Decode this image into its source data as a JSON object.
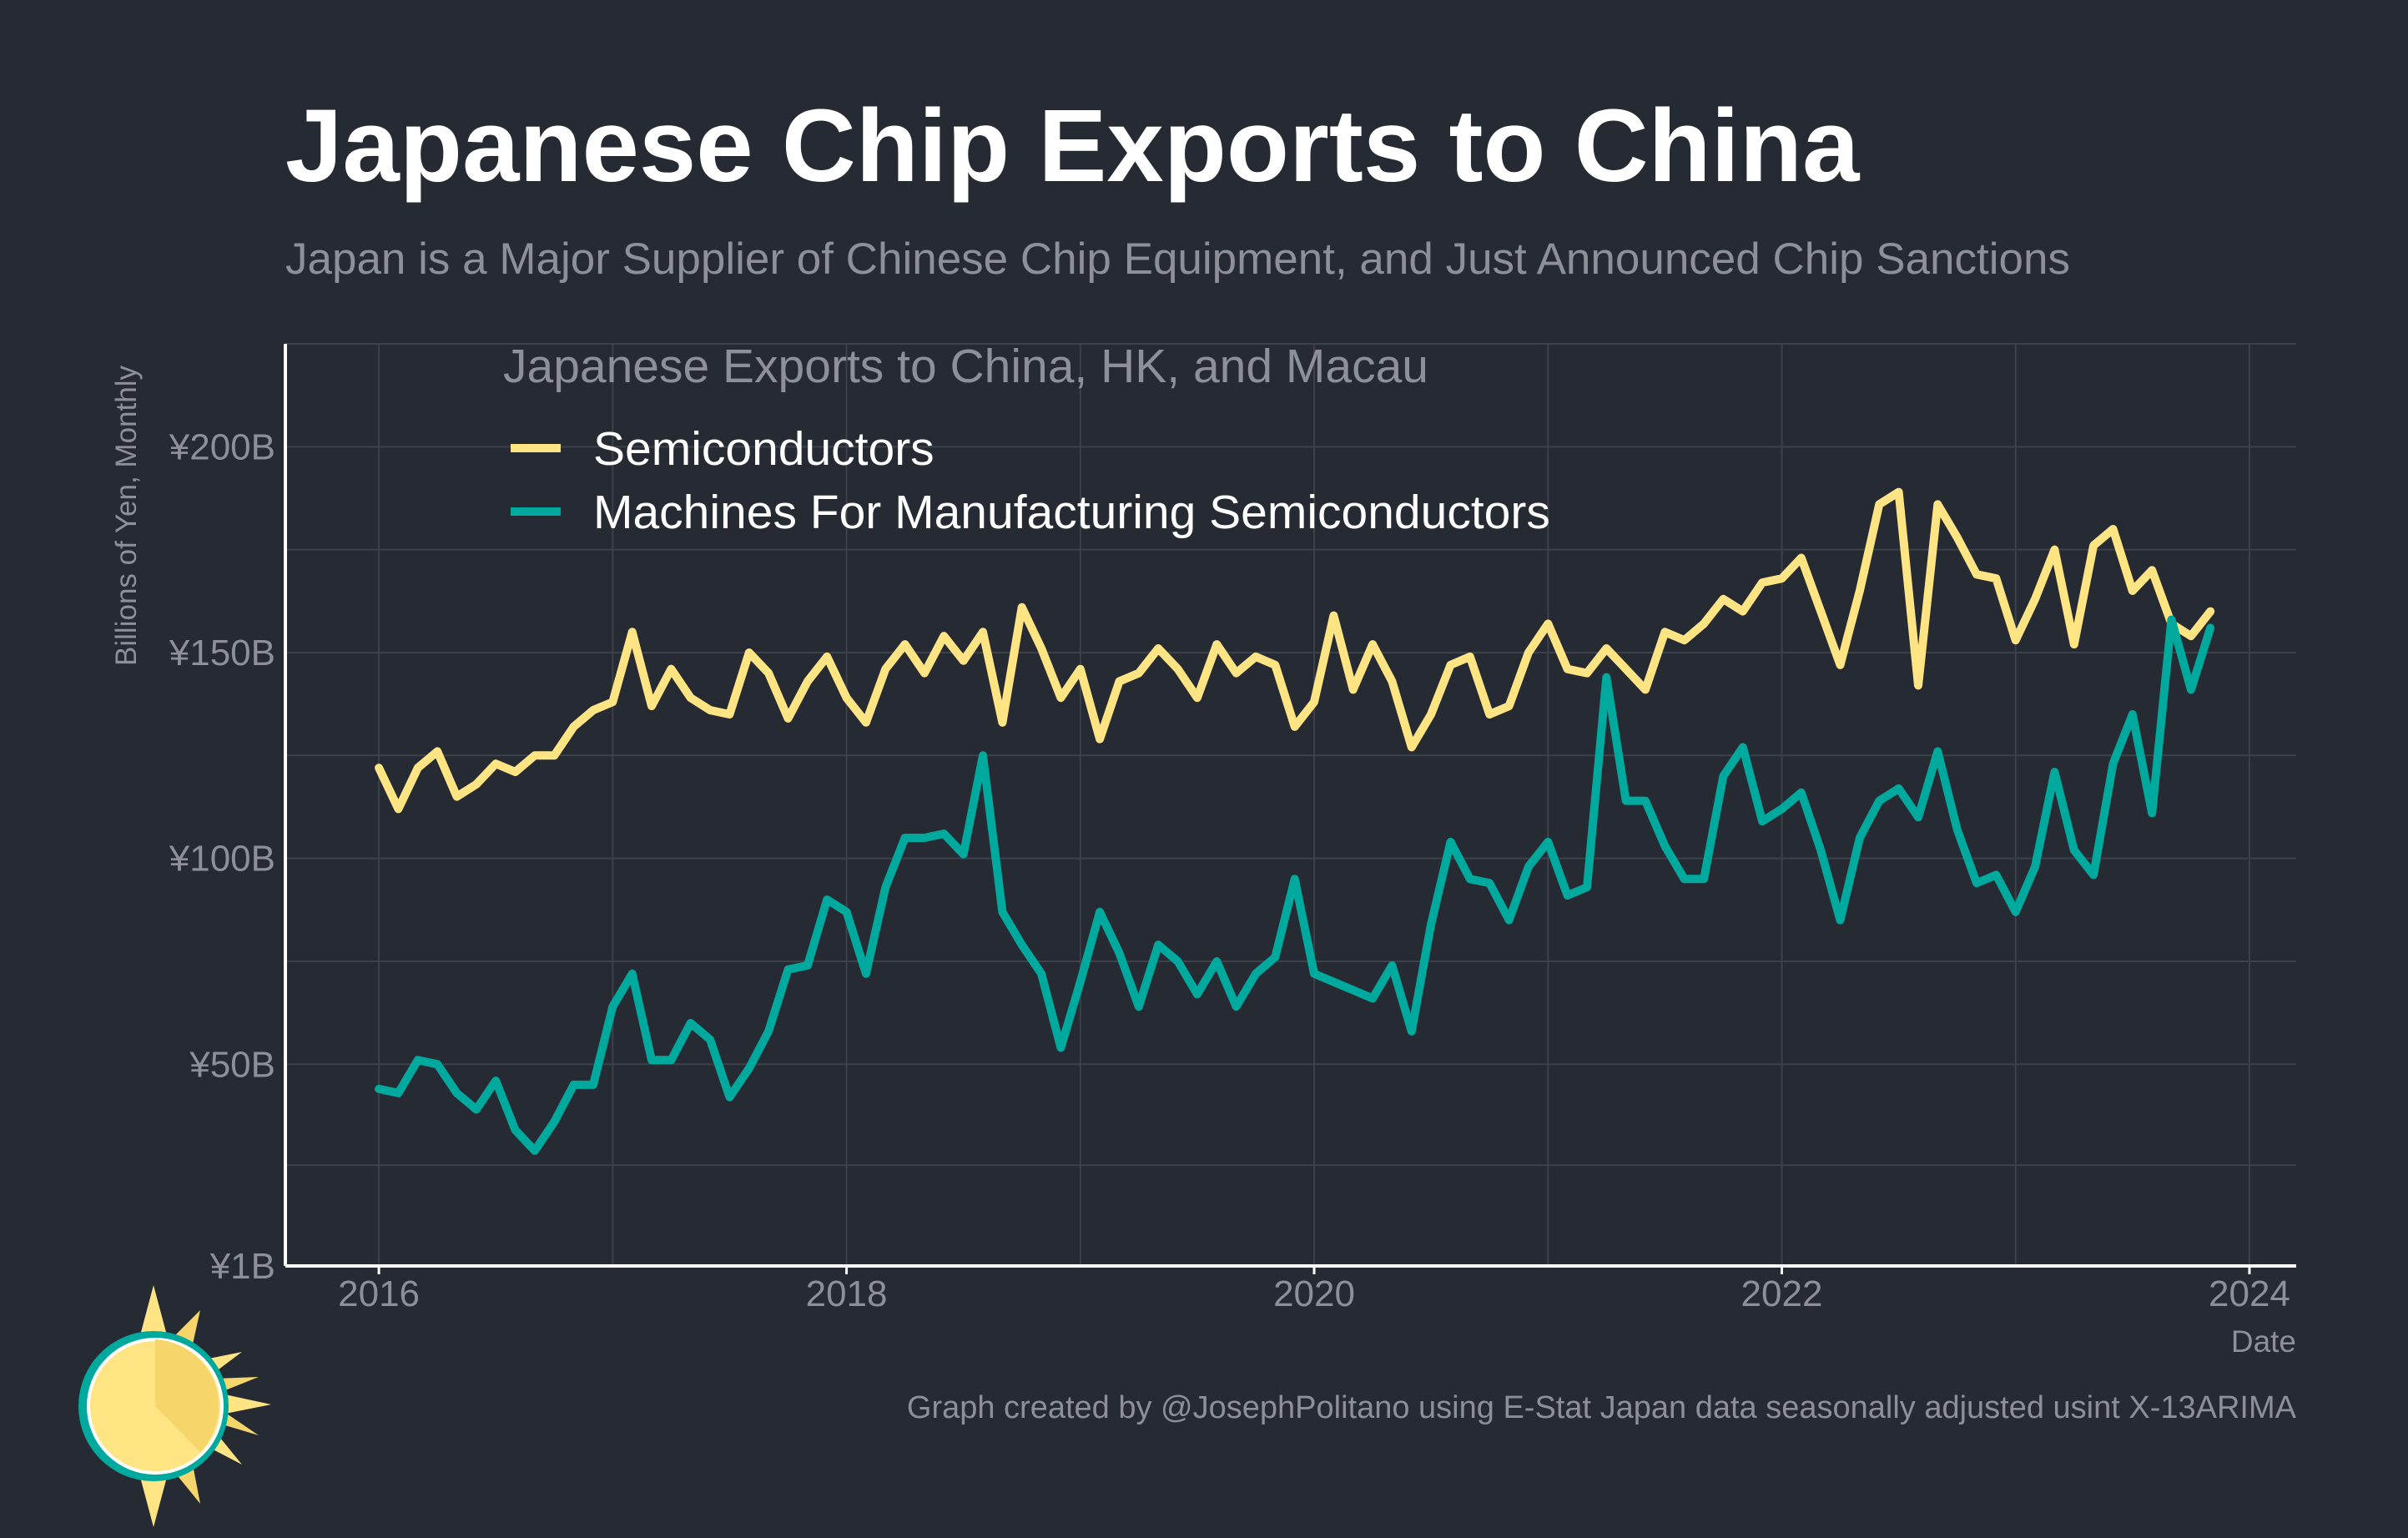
{
  "title": "Japanese Chip Exports to China",
  "subtitle": "Japan is a Major Supplier of Chinese Chip Equipment, and Just Announced Chip Sanctions",
  "caption": "Graph created by @JosephPolitano using E-Stat Japan data seasonally adjusted usint X-13ARIMA",
  "colors": {
    "background": "#252a33",
    "semiconductors": "#fee483",
    "machines": "#00a99d",
    "grid": "#3c414a",
    "text": "#8d9096"
  },
  "chart_data": {
    "type": "line",
    "title": "Japanese Chip Exports to China",
    "subtitle": "Japan is a Major Supplier of Chinese Chip Equipment, and Just Announced Chip Sanctions",
    "legend_title": "Japanese Exports to China, HK, and Macau",
    "legend_position": "top-left",
    "xlabel": "Date",
    "ylabel": "Billions of Yen, Monthly",
    "x_start": "2016-01",
    "x_frequency": "monthly",
    "xlim": [
      2015.6,
      2024.2
    ],
    "ylim": [
      1,
      225
    ],
    "x_ticks": [
      2016,
      2018,
      2020,
      2022,
      2024
    ],
    "x_tick_labels": [
      "2016",
      "2018",
      "2020",
      "2022",
      "2024"
    ],
    "y_ticks": [
      1,
      50,
      100,
      150,
      200
    ],
    "y_tick_labels": [
      "¥1B",
      "¥50B",
      "¥100B",
      "¥150B",
      "¥200B"
    ],
    "grid": true,
    "series": [
      {
        "name": "Semiconductors",
        "color": "#fee483",
        "values": [
          122,
          112,
          122,
          126,
          115,
          118,
          123,
          121,
          125,
          125,
          132,
          136,
          138,
          155,
          137,
          146,
          139,
          136,
          135,
          150,
          145,
          134,
          143,
          149,
          139,
          133,
          146,
          152,
          145,
          154,
          148,
          155,
          133,
          161,
          151,
          139,
          146,
          129,
          143,
          145,
          151,
          146,
          139,
          152,
          145,
          149,
          147,
          132,
          138,
          159,
          141,
          152,
          143,
          127,
          135,
          147,
          149,
          135,
          137,
          150,
          157,
          146,
          145,
          151,
          146,
          141,
          155,
          153,
          157,
          163,
          160,
          167,
          168,
          173,
          160,
          147,
          165,
          186,
          189,
          142,
          186,
          178,
          169,
          168,
          153,
          163,
          175,
          152,
          176,
          180,
          165,
          170,
          157,
          154,
          160
        ]
      },
      {
        "name": "Machines For Manufacturing Semiconductors",
        "color": "#00a99d",
        "values": [
          44,
          43,
          51,
          50,
          43,
          39,
          46,
          34,
          29,
          36,
          45,
          45,
          64,
          72,
          51,
          51,
          60,
          56,
          42,
          49,
          58,
          73,
          74,
          90,
          87,
          72,
          93,
          105,
          105,
          106,
          101,
          125,
          87,
          79,
          72,
          54,
          70,
          87,
          77,
          64,
          79,
          75,
          67,
          75,
          64,
          72,
          76,
          95,
          72,
          70,
          68,
          66,
          74,
          58,
          84,
          104,
          95,
          94,
          85,
          98,
          104,
          91,
          93,
          144,
          114,
          114,
          103,
          95,
          95,
          120,
          127,
          109,
          112,
          116,
          102,
          85,
          105,
          114,
          117,
          110,
          126,
          107,
          94,
          96,
          87,
          98,
          121,
          102,
          96,
          123,
          135,
          111,
          158,
          141,
          156
        ]
      }
    ]
  }
}
